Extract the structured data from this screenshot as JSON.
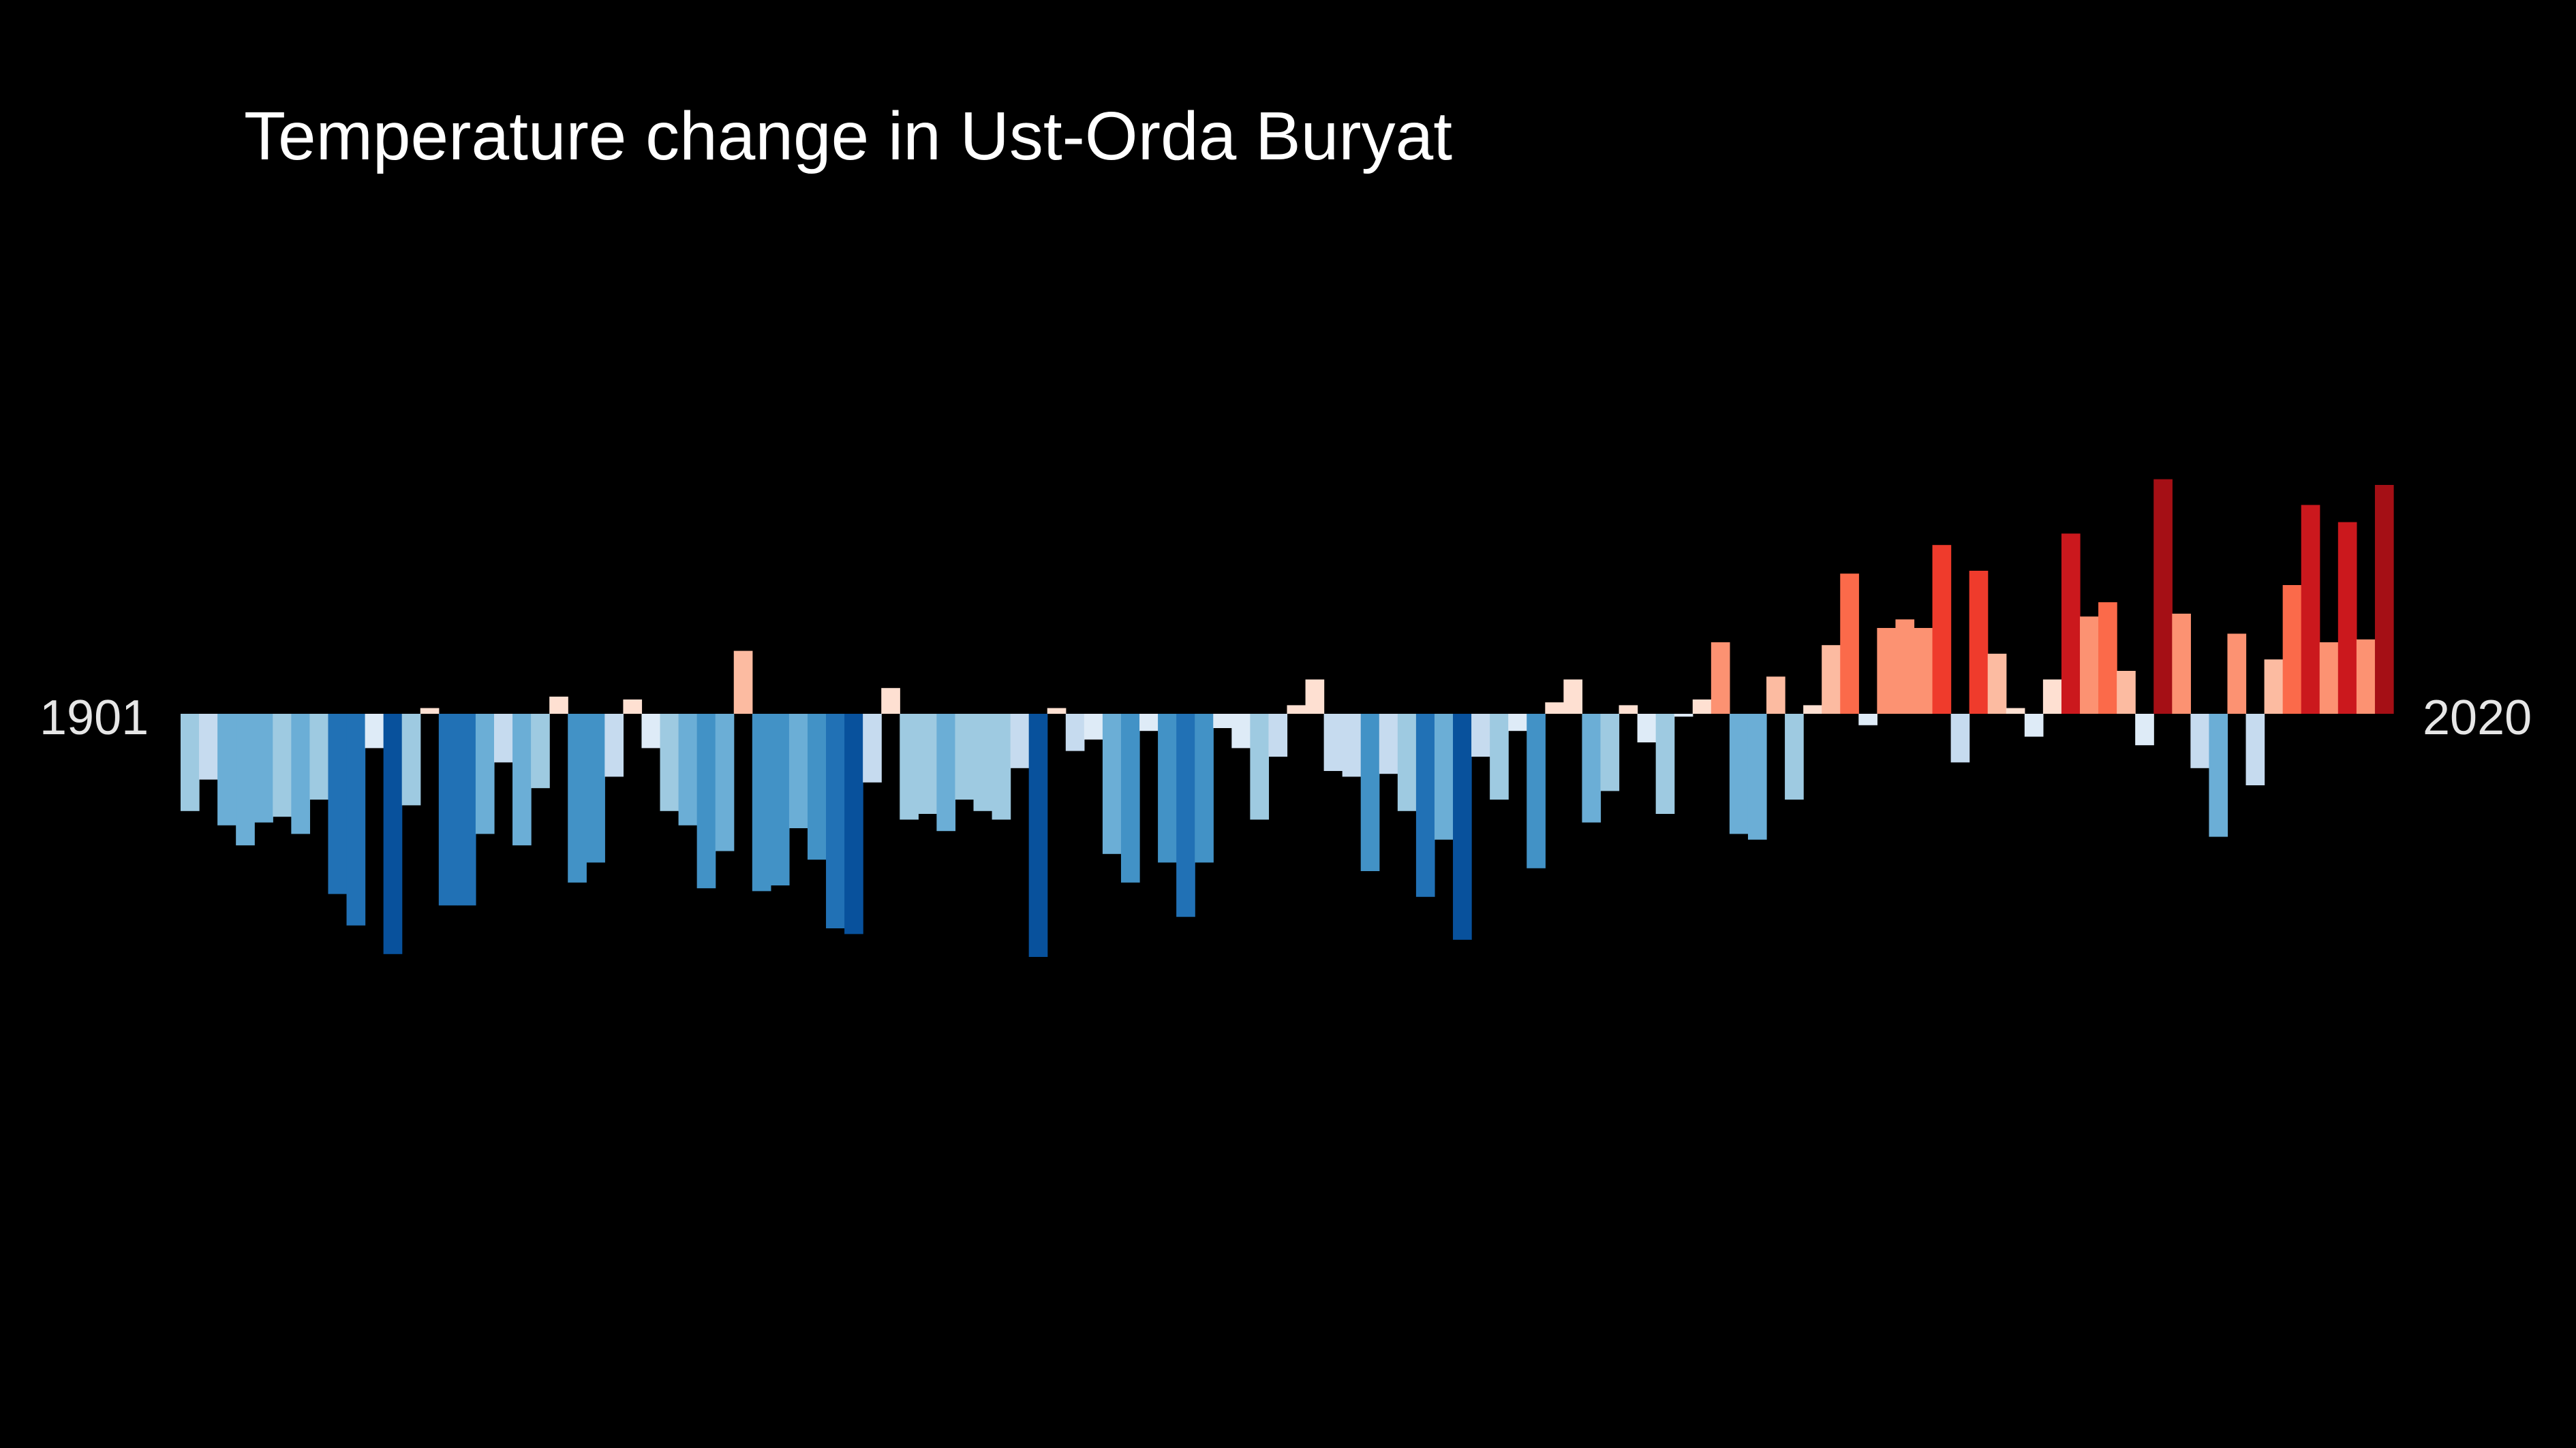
{
  "chart_data": {
    "type": "bar",
    "title": "Temperature change in Ust-Orda Buryat",
    "xlabel": "",
    "ylabel": "",
    "start_label": "1901",
    "end_label": "2020",
    "x_start": 1901,
    "x_end": 2020,
    "ylim": [
      -1.0,
      1.0
    ],
    "grid": false,
    "legend": "none",
    "values": [
      -0.34,
      -0.23,
      -0.39,
      -0.46,
      -0.38,
      -0.36,
      -0.42,
      -0.3,
      -0.63,
      -0.74,
      -0.12,
      -0.84,
      -0.32,
      0.02,
      -0.67,
      -0.67,
      -0.42,
      -0.17,
      -0.46,
      -0.26,
      0.06,
      -0.59,
      -0.52,
      -0.22,
      0.05,
      -0.12,
      -0.34,
      -0.39,
      -0.61,
      -0.48,
      0.22,
      -0.62,
      -0.6,
      -0.4,
      -0.51,
      -0.75,
      -0.77,
      -0.24,
      0.09,
      -0.37,
      -0.35,
      -0.41,
      -0.3,
      -0.34,
      -0.37,
      -0.19,
      -0.85,
      0.02,
      -0.13,
      -0.09,
      -0.49,
      -0.59,
      -0.06,
      -0.52,
      -0.71,
      -0.52,
      -0.05,
      -0.12,
      -0.37,
      -0.15,
      0.03,
      0.12,
      -0.2,
      -0.22,
      -0.55,
      -0.21,
      -0.34,
      -0.64,
      -0.44,
      -0.79,
      -0.15,
      -0.3,
      -0.06,
      -0.54,
      0.04,
      0.12,
      -0.38,
      -0.27,
      0.03,
      -0.1,
      -0.35,
      -0.01,
      0.05,
      0.25,
      -0.42,
      -0.44,
      0.13,
      -0.3,
      0.03,
      0.24,
      0.49,
      -0.04,
      0.3,
      0.33,
      0.3,
      0.59,
      -0.17,
      0.5,
      0.21,
      0.02,
      -0.08,
      0.12,
      0.63,
      0.34,
      0.39,
      0.15,
      -0.11,
      0.82,
      0.35,
      -0.19,
      -0.43,
      0.28,
      -0.25,
      0.19,
      0.45,
      0.73,
      0.25,
      0.67,
      0.26,
      0.8
    ]
  },
  "colors": {
    "background": "#000000",
    "title": "#ffffff",
    "year_labels": "#e6e6e6",
    "scale_cold_to_warm": [
      "#08306b",
      "#08519c",
      "#2171b5",
      "#4292c6",
      "#6baed6",
      "#9ecae1",
      "#c6dbef",
      "#deebf7",
      "#fee0d2",
      "#fcbba1",
      "#fc9272",
      "#fb6a4a",
      "#ef3b2c",
      "#cb181d",
      "#a50f15",
      "#67000d"
    ]
  }
}
